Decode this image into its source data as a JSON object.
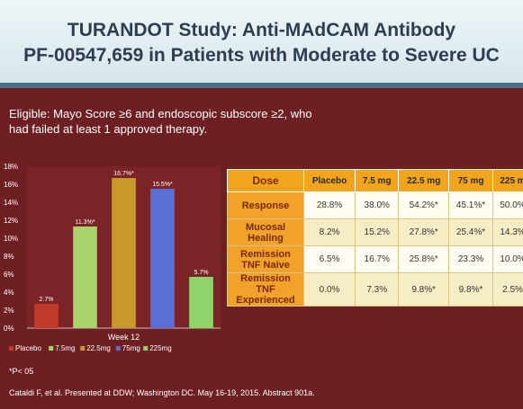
{
  "header": {
    "line1": "TURANDOT Study: Anti-MAdCAM Antibody",
    "line2": "PF-00547,659 in Patients with Moderate to Severe UC"
  },
  "eligible": "Eligible: Mayo Score ≥6 and endoscopic subscore ≥2, who had failed at least 1 approved therapy.",
  "chart_data": {
    "type": "bar",
    "x_label": "Week 12",
    "categories": [
      "Placebo",
      "7.5mg",
      "22.5mg",
      "75mg",
      "225mg"
    ],
    "values": [
      2.7,
      11.3,
      16.7,
      15.5,
      5.7
    ],
    "value_labels": [
      "2.7%",
      "11.3%*",
      "16.7%*",
      "15.5%*",
      "5.7%"
    ],
    "y_ticks": [
      "0%",
      "2%",
      "4%",
      "6%",
      "8%",
      "10%",
      "12%",
      "14%",
      "16%",
      "18%"
    ],
    "ylim": [
      0,
      18
    ],
    "colors": [
      "#c0392b",
      "#a9d36b",
      "#c8982a",
      "#5a6fd6",
      "#8fd36b"
    ],
    "legend": [
      "Placebo",
      "7.5mg",
      "22.5mg",
      "75mg",
      "225mg"
    ],
    "grid": false
  },
  "table": {
    "headers": [
      "Dose",
      "Placebo",
      "7.5 mg",
      "22.5 mg",
      "75 mg",
      "225 m"
    ],
    "rows": [
      {
        "label": "Response",
        "cells": [
          "28.8%",
          "38.0%",
          "54.2%*",
          "45.1%*",
          "50.0%"
        ]
      },
      {
        "label": "Mucosal Healing",
        "cells": [
          "8.2%",
          "15.2%",
          "27.8%*",
          "25.4%*",
          "14.3%"
        ]
      },
      {
        "label": "Remission TNF Naive",
        "cells": [
          "6.5%",
          "16.7%",
          "25.8%*",
          "23.3%",
          "10.0%"
        ]
      },
      {
        "label": "Remission TNF Experienced",
        "cells": [
          "0.0%",
          "7.3%",
          "9.8%*",
          "9.8%*",
          "2.5%"
        ]
      }
    ]
  },
  "notes": {
    "pvalue": "*P< 05",
    "citation": "Cataldi F, et al. Presented at DDW; Washington DC. May 16-19, 2015. Abstract 901a."
  }
}
